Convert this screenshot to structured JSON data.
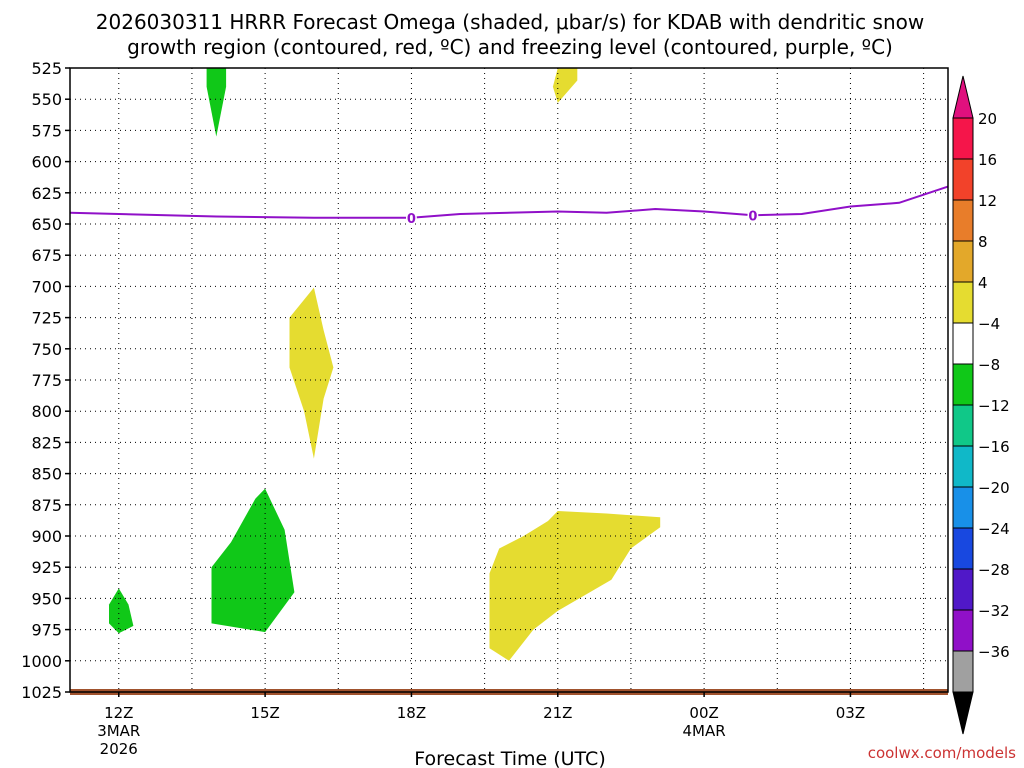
{
  "chart_data": {
    "type": "time-height contour",
    "title_lines": [
      "2026030311 HRRR Forecast Omega (shaded, μbar/s) for KDAB with dendritic snow",
      "growth region (contoured, red, ºC) and freezing level (contoured, purple, ºC)"
    ],
    "xlabel": "Forecast Time (UTC)",
    "credit": "coolwx.com/models",
    "credit_color": "#cc3333",
    "x_ticks": [
      {
        "hour": 12,
        "label": "12Z",
        "sub": [
          "3MAR",
          "2026"
        ]
      },
      {
        "hour": 15,
        "label": "15Z",
        "sub": []
      },
      {
        "hour": 18,
        "label": "18Z",
        "sub": []
      },
      {
        "hour": 21,
        "label": "21Z",
        "sub": []
      },
      {
        "hour": 24,
        "label": "00Z",
        "sub": [
          "4MAR"
        ]
      },
      {
        "hour": 27,
        "label": "03Z",
        "sub": []
      }
    ],
    "x_range_hours": [
      11,
      29
    ],
    "y_ticks": [
      525,
      550,
      575,
      600,
      625,
      650,
      675,
      700,
      725,
      750,
      775,
      800,
      825,
      850,
      875,
      900,
      925,
      950,
      975,
      1000,
      1025
    ],
    "y_range_mb": [
      525,
      1025
    ],
    "ground_color": "#a0522d",
    "colorbar": {
      "labels": [
        "20",
        "16",
        "12",
        "8",
        "4",
        "−4",
        "−8",
        "−12",
        "−16",
        "−20",
        "−24",
        "−28",
        "−32",
        "−36"
      ],
      "bins": [
        "#f5154a",
        "#f2422a",
        "#e87d2a",
        "#e3a82a",
        "#e5dc30",
        "#ffffff",
        "#10c818",
        "#10c888",
        "#10b8c8",
        "#1890e8",
        "#1848e0",
        "#5018c8",
        "#9010c8",
        "#a0a0a0"
      ],
      "top_arrow": "#e0107e",
      "bottom_arrow": "#000000"
    },
    "freezing_level": {
      "label": "0",
      "color": "#9010c8",
      "points": [
        [
          11.0,
          641
        ],
        [
          12.0,
          642
        ],
        [
          14.0,
          644
        ],
        [
          16.0,
          645
        ],
        [
          18.0,
          645
        ],
        [
          19.0,
          642
        ],
        [
          21.0,
          640
        ],
        [
          22.0,
          641
        ],
        [
          23.0,
          638
        ],
        [
          24.0,
          640
        ],
        [
          25.0,
          643
        ],
        [
          26.0,
          642
        ],
        [
          27.0,
          636
        ],
        [
          28.0,
          633
        ],
        [
          29.0,
          620
        ]
      ],
      "label_points": [
        [
          18.0,
          645
        ],
        [
          25.0,
          643
        ]
      ]
    },
    "omega_regions": [
      {
        "value_bin": "-4 to -8",
        "color": "#10c818",
        "points": [
          [
            13.8,
            525
          ],
          [
            14.2,
            525
          ],
          [
            14.2,
            540
          ],
          [
            14.0,
            580
          ],
          [
            13.8,
            540
          ]
        ]
      },
      {
        "value_bin": "-4 to -8",
        "color": "#10c818",
        "points": [
          [
            11.8,
            955
          ],
          [
            12.0,
            942
          ],
          [
            12.2,
            955
          ],
          [
            12.3,
            972
          ],
          [
            12.0,
            978
          ],
          [
            11.8,
            970
          ]
        ]
      },
      {
        "value_bin": "-4 to -8",
        "color": "#10c818",
        "points": [
          [
            13.9,
            960
          ],
          [
            13.9,
            925
          ],
          [
            14.3,
            905
          ],
          [
            14.8,
            870
          ],
          [
            15.0,
            862
          ],
          [
            15.4,
            895
          ],
          [
            15.6,
            945
          ],
          [
            15.0,
            977
          ],
          [
            13.9,
            970
          ]
        ]
      },
      {
        "value_bin": "4 to 8",
        "color": "#e5dc30",
        "points": [
          [
            21.0,
            525
          ],
          [
            21.4,
            525
          ],
          [
            21.4,
            535
          ],
          [
            21.0,
            553
          ],
          [
            20.9,
            540
          ]
        ]
      },
      {
        "value_bin": "4 to 8",
        "color": "#e5dc30",
        "points": [
          [
            15.5,
            765
          ],
          [
            15.5,
            725
          ],
          [
            16.0,
            701
          ],
          [
            16.2,
            735
          ],
          [
            16.4,
            765
          ],
          [
            16.2,
            790
          ],
          [
            16.0,
            838
          ],
          [
            15.8,
            800
          ]
        ]
      },
      {
        "value_bin": "4 to 8",
        "color": "#e5dc30",
        "points": [
          [
            19.6,
            975
          ],
          [
            19.6,
            930
          ],
          [
            19.8,
            910
          ],
          [
            20.3,
            900
          ],
          [
            20.8,
            888
          ],
          [
            21.0,
            880
          ],
          [
            22.0,
            882
          ],
          [
            23.1,
            885
          ],
          [
            23.1,
            893
          ],
          [
            22.5,
            910
          ],
          [
            22.1,
            935
          ],
          [
            21.0,
            960
          ],
          [
            20.5,
            975
          ],
          [
            20.0,
            1000
          ],
          [
            19.6,
            990
          ]
        ]
      }
    ]
  }
}
